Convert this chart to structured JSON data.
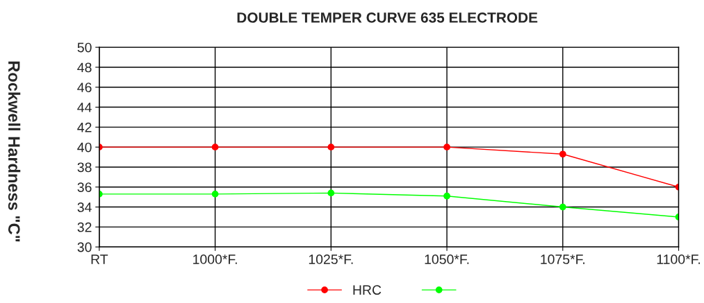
{
  "chart_data": {
    "type": "line",
    "title": "DOUBLE TEMPER CURVE 635 ELECTRODE",
    "ylabel": "Rockwell Hardness \"C\"",
    "categories": [
      "RT",
      "1000*F.",
      "1025*F.",
      "1050*F.",
      "1075*F.",
      "1100*F."
    ],
    "series": [
      {
        "name": "HRC",
        "color": "#ff0000",
        "values": [
          40,
          40,
          40,
          40,
          39.3,
          36
        ]
      },
      {
        "color": "#00ff00",
        "values": [
          35.3,
          35.3,
          35.4,
          35.1,
          34,
          33
        ]
      }
    ],
    "ylim": [
      30,
      50
    ],
    "yticks": [
      30,
      32,
      34,
      36,
      38,
      40,
      42,
      44,
      46,
      48,
      50
    ],
    "grid": true,
    "legend": "bottom",
    "marker": "circle",
    "line_style": "solid"
  }
}
